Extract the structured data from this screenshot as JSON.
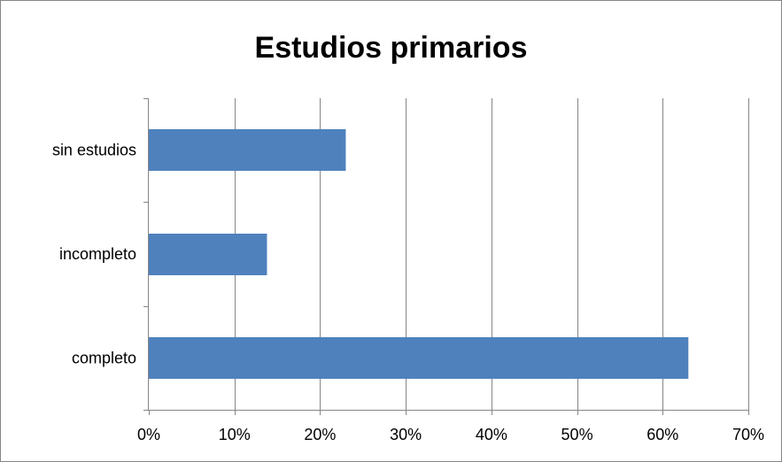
{
  "chart_data": {
    "type": "bar",
    "orientation": "horizontal",
    "title": "Estudios primarios",
    "xlabel": "",
    "ylabel": "",
    "categories": [
      "sin estudios",
      "incompleto",
      "completo"
    ],
    "values": [
      0.23,
      0.138,
      0.63
    ],
    "xlim": [
      0,
      0.7
    ],
    "xticks": [
      "0%",
      "10%",
      "20%",
      "30%",
      "40%",
      "50%",
      "60%",
      "70%"
    ],
    "grid": "vertical",
    "legend": "none",
    "bar_color": "#4f81bd",
    "gridline_color": "#868686"
  }
}
